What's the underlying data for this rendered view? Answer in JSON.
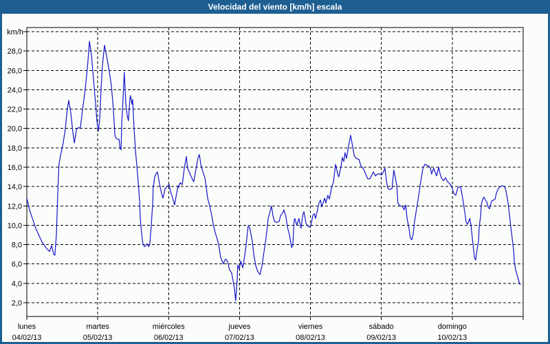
{
  "window": {
    "title": "Velocidad del viento [km/h] escala",
    "title_bar_color": "#1e5f92",
    "border_color": "#1e5f92",
    "background_color": "#fbfdfa"
  },
  "chart_data": {
    "type": "line",
    "title": "Velocidad del viento [km/h] escala",
    "legend": "none",
    "grid": "dashed black, horizontal every 2 km/h, vertical at each day boundary",
    "y_axis": {
      "unit_label": "km/h",
      "tick_values": [
        2,
        4,
        6,
        8,
        10,
        12,
        14,
        16,
        18,
        20,
        22,
        24,
        26,
        28
      ],
      "tick_labels": [
        "2,0",
        "4,0",
        "6,0",
        "8,0",
        "10,0",
        "12,0",
        "14,0",
        "16,0",
        "18,0",
        "20,0",
        "22,0",
        "24,0",
        "26,0",
        "28,0"
      ],
      "top_gridline_value": 30,
      "range": [
        0.6,
        30.4
      ]
    },
    "x_axis": {
      "range_hours": [
        0,
        168
      ],
      "hours_per_day": 24,
      "days": [
        {
          "name": "lunes",
          "date": "04/02/13"
        },
        {
          "name": "martes",
          "date": "05/02/13"
        },
        {
          "name": "miércoles",
          "date": "06/02/13"
        },
        {
          "name": "jueves",
          "date": "07/02/13"
        },
        {
          "name": "viernes",
          "date": "08/02/13"
        },
        {
          "name": "sábado",
          "date": "09/02/13"
        },
        {
          "name": "domingo",
          "date": "10/02/13"
        }
      ]
    },
    "series": [
      {
        "name": "velocidad del viento",
        "color": "#1414c8",
        "x_unit": "hours from lunes 04/02/13 00:00",
        "y_unit": "km/h",
        "points": [
          [
            0,
            12.8
          ],
          [
            0.9,
            11.6
          ],
          [
            1.9,
            10.7
          ],
          [
            3,
            9.7
          ],
          [
            4.2,
            8.9
          ],
          [
            5.1,
            8.3
          ],
          [
            5.8,
            8
          ],
          [
            6.7,
            7.6
          ],
          [
            7.7,
            7.3
          ],
          [
            8.4,
            7.9
          ],
          [
            9.1,
            7
          ],
          [
            9.5,
            6.9
          ],
          [
            10,
            9
          ],
          [
            10.5,
            13.5
          ],
          [
            10.9,
            16.3
          ],
          [
            11.4,
            17.2
          ],
          [
            12.3,
            18.5
          ],
          [
            13,
            19.9
          ],
          [
            13.7,
            22
          ],
          [
            14.2,
            22.9
          ],
          [
            14.9,
            21.6
          ],
          [
            15.6,
            19.6
          ],
          [
            16.1,
            18.5
          ],
          [
            16.8,
            19.9
          ],
          [
            17.5,
            20.1
          ],
          [
            18.1,
            20
          ],
          [
            18.8,
            21.8
          ],
          [
            19.5,
            23.4
          ],
          [
            20.2,
            25.3
          ],
          [
            20.7,
            27
          ],
          [
            21.2,
            29
          ],
          [
            21.9,
            27.5
          ],
          [
            22.6,
            25
          ],
          [
            23.3,
            22.5
          ],
          [
            23.7,
            20.8
          ],
          [
            24.2,
            19.7
          ],
          [
            24.7,
            21.1
          ],
          [
            25.1,
            24
          ],
          [
            25.6,
            26.5
          ],
          [
            26.3,
            28.6
          ],
          [
            26.8,
            27.8
          ],
          [
            27.7,
            26.3
          ],
          [
            28.6,
            24.5
          ],
          [
            29.3,
            22
          ],
          [
            29.8,
            19.3
          ],
          [
            30.2,
            19
          ],
          [
            30.7,
            18.9
          ],
          [
            31.2,
            18.9
          ],
          [
            31.6,
            17.9
          ],
          [
            31.9,
            17.8
          ],
          [
            32.1,
            20.4
          ],
          [
            32.6,
            23.3
          ],
          [
            33,
            25.8
          ],
          [
            33.5,
            22.6
          ],
          [
            34,
            21.3
          ],
          [
            34.4,
            20.8
          ],
          [
            34.9,
            23.1
          ],
          [
            35.1,
            23.4
          ],
          [
            35.6,
            22.5
          ],
          [
            35.8,
            23
          ],
          [
            36.3,
            20
          ],
          [
            36.8,
            17.6
          ],
          [
            37.5,
            15.2
          ],
          [
            38.2,
            12.4
          ],
          [
            38.4,
            10.7
          ],
          [
            38.9,
            9
          ],
          [
            39.3,
            8.1
          ],
          [
            39.8,
            7.8
          ],
          [
            40.3,
            7.9
          ],
          [
            40.7,
            8.1
          ],
          [
            41.2,
            7.8
          ],
          [
            41.6,
            8
          ],
          [
            42.1,
            9.8
          ],
          [
            42.6,
            12.3
          ],
          [
            42.8,
            14
          ],
          [
            43.3,
            15
          ],
          [
            43.7,
            15.3
          ],
          [
            44.2,
            15.5
          ],
          [
            44.9,
            14.3
          ],
          [
            45.6,
            13.3
          ],
          [
            46.1,
            12.8
          ],
          [
            46.8,
            13.8
          ],
          [
            47.5,
            14
          ],
          [
            48.2,
            14.2
          ],
          [
            48.6,
            13.5
          ],
          [
            49.3,
            12.9
          ],
          [
            50,
            12.1
          ],
          [
            50.7,
            13.3
          ],
          [
            51.2,
            14.1
          ],
          [
            51.4,
            13.9
          ],
          [
            51.9,
            14.4
          ],
          [
            52.6,
            14.2
          ],
          [
            53.3,
            15.9
          ],
          [
            54,
            17.1
          ],
          [
            54.4,
            15.9
          ],
          [
            55.4,
            15.2
          ],
          [
            56.1,
            14.7
          ],
          [
            56.5,
            14.5
          ],
          [
            57.2,
            15.7
          ],
          [
            57.9,
            16.9
          ],
          [
            58.4,
            17.3
          ],
          [
            58.9,
            16.3
          ],
          [
            59.6,
            15.5
          ],
          [
            60.3,
            14.9
          ],
          [
            60.7,
            14
          ],
          [
            61.2,
            12.8
          ],
          [
            61.9,
            12
          ],
          [
            62.6,
            11
          ],
          [
            63.1,
            10.1
          ],
          [
            63.8,
            9.2
          ],
          [
            64.4,
            8.6
          ],
          [
            64.9,
            8.1
          ],
          [
            65.6,
            6.7
          ],
          [
            66.1,
            6.3
          ],
          [
            66.5,
            6
          ],
          [
            67.2,
            6.5
          ],
          [
            67.7,
            6.4
          ],
          [
            68.2,
            6
          ],
          [
            68.6,
            5.4
          ],
          [
            69.3,
            5.1
          ],
          [
            69.8,
            4.3
          ],
          [
            70.3,
            3.4
          ],
          [
            70.7,
            2.2
          ],
          [
            71.2,
            4.4
          ],
          [
            71.4,
            5.9
          ],
          [
            71.9,
            5.5
          ],
          [
            72.4,
            6.3
          ],
          [
            73.1,
            5.6
          ],
          [
            73.8,
            7
          ],
          [
            74.2,
            7.9
          ],
          [
            74.9,
            9.9
          ],
          [
            75.4,
            9.8
          ],
          [
            76.3,
            8.4
          ],
          [
            76.8,
            7
          ],
          [
            77.5,
            5.8
          ],
          [
            78.2,
            5.2
          ],
          [
            78.9,
            4.9
          ],
          [
            79.6,
            5.8
          ],
          [
            80,
            6.7
          ],
          [
            80.7,
            8.1
          ],
          [
            81.2,
            9.3
          ],
          [
            81.7,
            10.7
          ],
          [
            82.4,
            11.5
          ],
          [
            82.8,
            12
          ],
          [
            83.3,
            11
          ],
          [
            83.8,
            10.4
          ],
          [
            84.5,
            10.3
          ],
          [
            85.4,
            10.4
          ],
          [
            85.9,
            11
          ],
          [
            86.8,
            11.4
          ],
          [
            87,
            11.6
          ],
          [
            87.7,
            10.9
          ],
          [
            88.2,
            9.8
          ],
          [
            88.9,
            9
          ],
          [
            89.6,
            7.7
          ],
          [
            90,
            7.9
          ],
          [
            90.5,
            10.5
          ],
          [
            90.7,
            10.7
          ],
          [
            91.4,
            10
          ],
          [
            92.1,
            10.7
          ],
          [
            92.8,
            9.7
          ],
          [
            93.5,
            11.2
          ],
          [
            93.8,
            11.4
          ],
          [
            94.5,
            10.2
          ],
          [
            95.2,
            9.9
          ],
          [
            95.6,
            9.8
          ],
          [
            96.1,
            9.9
          ],
          [
            96.8,
            11
          ],
          [
            97.3,
            11.2
          ],
          [
            97.7,
            10.7
          ],
          [
            98.4,
            11.6
          ],
          [
            98.9,
            12.3
          ],
          [
            99.4,
            12.6
          ],
          [
            99.8,
            11.9
          ],
          [
            100.8,
            12.8
          ],
          [
            101.2,
            12.3
          ],
          [
            101.9,
            13.1
          ],
          [
            102.4,
            12.7
          ],
          [
            103.1,
            13.8
          ],
          [
            103.8,
            14.5
          ],
          [
            104.5,
            16.3
          ],
          [
            105.2,
            15.3
          ],
          [
            105.6,
            15
          ],
          [
            106.3,
            16
          ],
          [
            106.8,
            17
          ],
          [
            107.3,
            16.6
          ],
          [
            107.7,
            17.5
          ],
          [
            108.2,
            16.9
          ],
          [
            108.9,
            18.2
          ],
          [
            109.6,
            19.3
          ],
          [
            110.3,
            18.1
          ],
          [
            110.8,
            17.2
          ],
          [
            111.5,
            16.9
          ],
          [
            112.4,
            16.8
          ],
          [
            113.1,
            16.1
          ],
          [
            113.8,
            15.9
          ],
          [
            114.7,
            15.3
          ],
          [
            115.4,
            14.8
          ],
          [
            116.1,
            14.8
          ],
          [
            116.8,
            15.2
          ],
          [
            117.3,
            15.5
          ],
          [
            118,
            15.1
          ],
          [
            118.7,
            15.3
          ],
          [
            119.4,
            15.3
          ],
          [
            120.1,
            15.2
          ],
          [
            120.8,
            15.6
          ],
          [
            121.2,
            15.9
          ],
          [
            121.7,
            14.6
          ],
          [
            122.2,
            13.8
          ],
          [
            122.9,
            13.7
          ],
          [
            123.6,
            13.8
          ],
          [
            124.2,
            15.7
          ],
          [
            124.7,
            15
          ],
          [
            125.2,
            14.1
          ],
          [
            125.6,
            12.3
          ],
          [
            126.3,
            12
          ],
          [
            127,
            12
          ],
          [
            127.7,
            11.6
          ],
          [
            128.2,
            12.1
          ],
          [
            128.7,
            10.7
          ],
          [
            129.4,
            9.6
          ],
          [
            129.8,
            8.7
          ],
          [
            130.3,
            8.5
          ],
          [
            130.8,
            9.1
          ],
          [
            131.2,
            10.3
          ],
          [
            131.9,
            11.7
          ],
          [
            132.6,
            13
          ],
          [
            133.3,
            14.5
          ],
          [
            134,
            15.8
          ],
          [
            134.7,
            16.3
          ],
          [
            135.4,
            16.2
          ],
          [
            136.1,
            16.1
          ],
          [
            136.6,
            15.9
          ],
          [
            137,
            15.3
          ],
          [
            137.7,
            15.9
          ],
          [
            138.2,
            15.5
          ],
          [
            138.7,
            15.1
          ],
          [
            139.4,
            16
          ],
          [
            139.8,
            15.4
          ],
          [
            140.3,
            14.9
          ],
          [
            141,
            14.6
          ],
          [
            141.7,
            14.9
          ],
          [
            142.4,
            14.5
          ],
          [
            143.1,
            14.3
          ],
          [
            143.8,
            14
          ],
          [
            144.5,
            13.3
          ],
          [
            145.2,
            13.1
          ],
          [
            145.9,
            13.9
          ],
          [
            146.8,
            14
          ],
          [
            147.5,
            12.8
          ],
          [
            148.2,
            11.4
          ],
          [
            148.7,
            10.3
          ],
          [
            149.2,
            10.1
          ],
          [
            149.9,
            10.7
          ],
          [
            150.3,
            10.1
          ],
          [
            151,
            8.1
          ],
          [
            151.5,
            6.7
          ],
          [
            151.9,
            6.4
          ],
          [
            152.4,
            7.5
          ],
          [
            152.9,
            8.4
          ],
          [
            153.1,
            9.8
          ],
          [
            153.6,
            11
          ],
          [
            153.8,
            12.1
          ],
          [
            154.3,
            12.7
          ],
          [
            154.7,
            12.9
          ],
          [
            155.2,
            12.6
          ],
          [
            155.7,
            12.4
          ],
          [
            156.1,
            11.9
          ],
          [
            156.6,
            11.7
          ],
          [
            157.3,
            12.5
          ],
          [
            158,
            12.6
          ],
          [
            158.5,
            12.7
          ],
          [
            158.9,
            13.3
          ],
          [
            159.6,
            13.8
          ],
          [
            160.3,
            14
          ],
          [
            160.8,
            14.1
          ],
          [
            161.5,
            14
          ],
          [
            162,
            13.8
          ],
          [
            162.4,
            13.2
          ],
          [
            162.9,
            12.3
          ],
          [
            163.4,
            11
          ],
          [
            163.8,
            9.8
          ],
          [
            164.3,
            8.6
          ],
          [
            164.8,
            7.3
          ],
          [
            165,
            6.2
          ],
          [
            165.5,
            5.3
          ],
          [
            165.9,
            4.9
          ],
          [
            166.4,
            4.4
          ],
          [
            166.8,
            4
          ],
          [
            167,
            3.85
          ]
        ]
      }
    ]
  }
}
